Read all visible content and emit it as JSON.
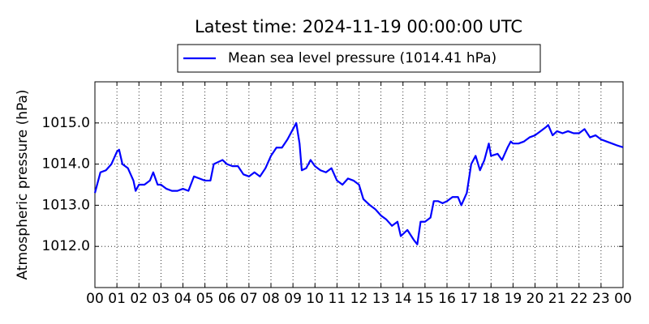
{
  "chart_data": {
    "type": "line",
    "title": "Latest time: 2024-11-19 00:00:00 UTC",
    "y_label": "Atmospheric pressure (hPa)",
    "legend": "upper center",
    "grid": true,
    "series": [
      {
        "name": "Mean sea level pressure (1014.41 hPa)",
        "color": "#0000ff",
        "x": [
          0,
          0.25,
          0.5,
          0.75,
          1,
          1.1,
          1.25,
          1.5,
          1.75,
          1.85,
          2,
          2.25,
          2.5,
          2.65,
          2.85,
          3,
          3.25,
          3.5,
          3.75,
          4,
          4.25,
          4.5,
          4.75,
          5,
          5.25,
          5.4,
          5.6,
          5.8,
          6,
          6.25,
          6.5,
          6.75,
          7,
          7.25,
          7.5,
          7.75,
          8,
          8.25,
          8.5,
          8.75,
          9,
          9.15,
          9.3,
          9.4,
          9.6,
          9.8,
          10,
          10.25,
          10.5,
          10.75,
          11,
          11.25,
          11.5,
          11.75,
          12,
          12.2,
          12.5,
          12.75,
          13,
          13.25,
          13.5,
          13.75,
          13.9,
          14.2,
          14.5,
          14.65,
          14.8,
          15,
          15.25,
          15.4,
          15.6,
          15.8,
          16,
          16.25,
          16.5,
          16.65,
          16.9,
          17.1,
          17.3,
          17.5,
          17.7,
          17.9,
          18,
          18.3,
          18.5,
          18.75,
          18.9,
          19,
          19.25,
          19.5,
          19.75,
          20,
          20.25,
          20.5,
          20.6,
          20.8,
          21,
          21.25,
          21.5,
          21.75,
          22,
          22.25,
          22.5,
          22.75,
          23,
          23.25,
          23.5,
          23.75,
          24
        ],
        "values": [
          1013.3,
          1013.8,
          1013.85,
          1014.0,
          1014.3,
          1014.35,
          1014.0,
          1013.9,
          1013.6,
          1013.35,
          1013.5,
          1013.5,
          1013.6,
          1013.8,
          1013.5,
          1013.5,
          1013.4,
          1013.35,
          1013.35,
          1013.4,
          1013.35,
          1013.7,
          1013.65,
          1013.6,
          1013.6,
          1014.0,
          1014.05,
          1014.1,
          1014.0,
          1013.95,
          1013.95,
          1013.75,
          1013.7,
          1013.8,
          1013.7,
          1013.9,
          1014.2,
          1014.4,
          1014.4,
          1014.6,
          1014.85,
          1015.0,
          1014.5,
          1013.85,
          1013.9,
          1014.1,
          1013.95,
          1013.85,
          1013.8,
          1013.9,
          1013.6,
          1013.5,
          1013.65,
          1013.6,
          1013.5,
          1013.15,
          1013.0,
          1012.9,
          1012.75,
          1012.65,
          1012.5,
          1012.6,
          1012.25,
          1012.4,
          1012.15,
          1012.05,
          1012.6,
          1012.6,
          1012.7,
          1013.1,
          1013.1,
          1013.05,
          1013.1,
          1013.2,
          1013.2,
          1013.0,
          1013.3,
          1014.0,
          1014.2,
          1013.85,
          1014.1,
          1014.5,
          1014.2,
          1014.25,
          1014.1,
          1014.4,
          1014.55,
          1014.5,
          1014.5,
          1014.55,
          1014.65,
          1014.7,
          1014.8,
          1014.9,
          1014.95,
          1014.7,
          1014.8,
          1014.75,
          1014.8,
          1014.75,
          1014.75,
          1014.85,
          1014.65,
          1014.7,
          1014.6,
          1014.55,
          1014.5,
          1014.45,
          1014.41
        ]
      }
    ],
    "xlim": [
      0,
      24
    ],
    "xticks": [
      {
        "value": 0,
        "label": "00"
      },
      {
        "value": 1,
        "label": "01"
      },
      {
        "value": 2,
        "label": "02"
      },
      {
        "value": 3,
        "label": "03"
      },
      {
        "value": 4,
        "label": "04"
      },
      {
        "value": 5,
        "label": "05"
      },
      {
        "value": 6,
        "label": "06"
      },
      {
        "value": 7,
        "label": "07"
      },
      {
        "value": 8,
        "label": "08"
      },
      {
        "value": 9,
        "label": "09"
      },
      {
        "value": 10,
        "label": "10"
      },
      {
        "value": 11,
        "label": "11"
      },
      {
        "value": 12,
        "label": "12"
      },
      {
        "value": 13,
        "label": "13"
      },
      {
        "value": 14,
        "label": "14"
      },
      {
        "value": 15,
        "label": "15"
      },
      {
        "value": 16,
        "label": "16"
      },
      {
        "value": 17,
        "label": "17"
      },
      {
        "value": 18,
        "label": "18"
      },
      {
        "value": 19,
        "label": "19"
      },
      {
        "value": 20,
        "label": "20"
      },
      {
        "value": 21,
        "label": "21"
      },
      {
        "value": 22,
        "label": "22"
      },
      {
        "value": 23,
        "label": "23"
      },
      {
        "value": 24,
        "label": "00"
      }
    ],
    "ylim": [
      1011,
      1016
    ],
    "yticks": [
      {
        "value": 1012,
        "label": "1012.0"
      },
      {
        "value": 1013,
        "label": "1013.0"
      },
      {
        "value": 1014,
        "label": "1014.0"
      },
      {
        "value": 1015,
        "label": "1015.0"
      }
    ]
  }
}
